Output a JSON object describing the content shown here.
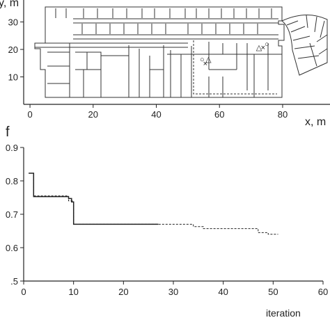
{
  "chart_data": [
    {
      "type": "map",
      "title": "",
      "xlabel": "x, m",
      "ylabel": "y, m",
      "xlim": [
        -2,
        95
      ],
      "ylim": [
        0,
        38
      ],
      "x_ticks": [
        0,
        20,
        40,
        60,
        80
      ],
      "y_ticks": [
        10,
        20,
        30
      ],
      "grid": false,
      "markers": [
        {
          "symbol": "○",
          "x": 54.5,
          "y": 16.5
        },
        {
          "symbol": "△",
          "x": 56.5,
          "y": 16.5
        },
        {
          "symbol": "×",
          "x": 55.5,
          "y": 15.0
        },
        {
          "symbol": "△",
          "x": 72.5,
          "y": 20.8
        },
        {
          "symbol": "×",
          "x": 73.8,
          "y": 20.8
        },
        {
          "symbol": "○",
          "x": 75.0,
          "y": 22.0
        }
      ]
    },
    {
      "type": "line",
      "title": "",
      "panel_label": "f",
      "xlabel": "iteration",
      "ylabel": "",
      "xlim": [
        0,
        60
      ],
      "ylim": [
        0.5,
        0.9
      ],
      "x_ticks": [
        0,
        10,
        20,
        30,
        40,
        50,
        60
      ],
      "y_ticks": [
        0.5,
        0.6,
        0.7,
        0.8,
        0.9
      ],
      "y_tick_labels": [
        ".5",
        "0.6",
        "0.7",
        "0.8",
        "0.9"
      ],
      "grid": false,
      "series": [
        {
          "style": "solid",
          "x": [
            1,
            2,
            2,
            9,
            9,
            9.6,
            9.6,
            10,
            10,
            27
          ],
          "y": [
            0.823,
            0.823,
            0.753,
            0.753,
            0.747,
            0.747,
            0.737,
            0.737,
            0.67,
            0.67
          ]
        },
        {
          "style": "dashed",
          "x": [
            1,
            2,
            2,
            9,
            9,
            10,
            10,
            34,
            34,
            36,
            36,
            47,
            47,
            49,
            49,
            51
          ],
          "y": [
            0.823,
            0.823,
            0.755,
            0.755,
            0.74,
            0.74,
            0.67,
            0.67,
            0.663,
            0.663,
            0.657,
            0.657,
            0.645,
            0.645,
            0.64,
            0.64
          ]
        }
      ]
    }
  ]
}
